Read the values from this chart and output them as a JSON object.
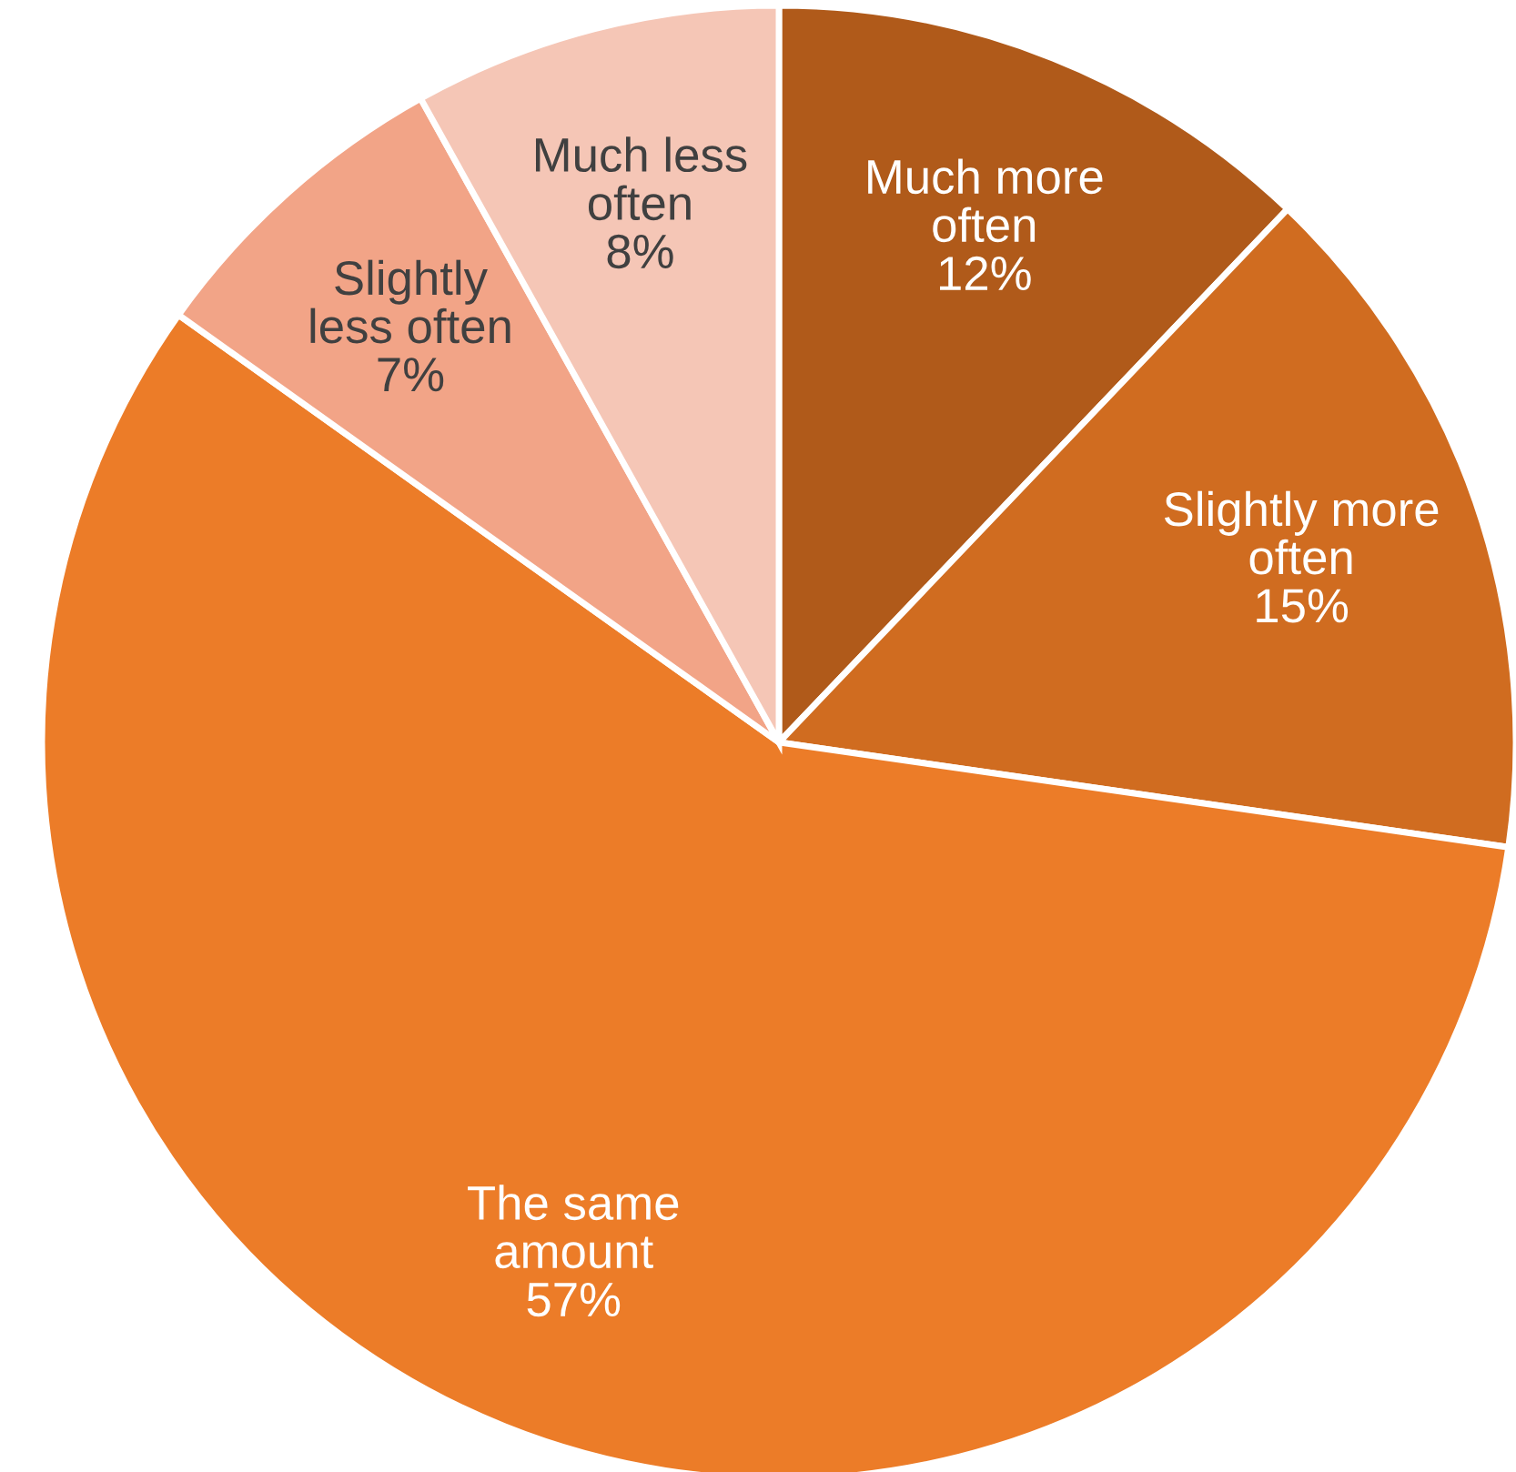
{
  "chart_data": {
    "type": "pie",
    "categories": [
      "Much more often",
      "Slightly more often",
      "The same amount",
      "Slightly less often",
      "Much less often"
    ],
    "values": [
      12,
      15,
      57,
      7,
      8
    ],
    "colors": [
      "#b05a1a",
      "#d06c20",
      "#ec7c28",
      "#f2a487",
      "#f5c6b6"
    ],
    "value_labels": [
      "12%",
      "15%",
      "57%",
      "7%",
      "8%"
    ],
    "legend": false
  }
}
